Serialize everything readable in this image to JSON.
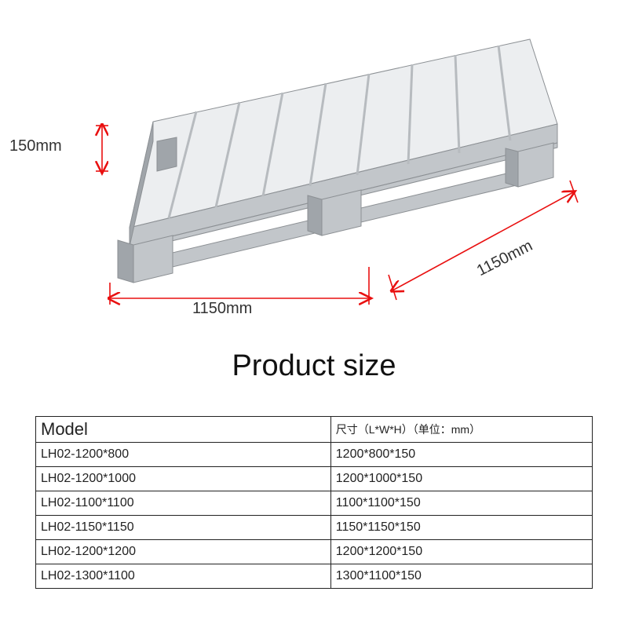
{
  "title": "Product size",
  "dimensions": {
    "height_label": "150mm",
    "width_label": "1150mm",
    "depth_label": "1150mm"
  },
  "diagram": {
    "arrow_color": "#e91010",
    "arrow_stroke_width": 1.6,
    "pallet": {
      "fill_light": "#eceef0",
      "fill_mid": "#c2c6ca",
      "fill_dark": "#a0a5aa",
      "edge": "#8c9094"
    },
    "label_color": "#333333",
    "label_fontsize": 20
  },
  "table": {
    "header_model": "Model",
    "header_size": "尺寸（L*W*H）（单位：mm）",
    "columns_width_pct": [
      53,
      47
    ],
    "border_color": "#222222",
    "rows": [
      {
        "model": "LH02-1200*800",
        "size": "1200*800*150"
      },
      {
        "model": "LH02-1200*1000",
        "size": "1200*1000*150"
      },
      {
        "model": "LH02-1100*1100",
        "size": "1100*1100*150"
      },
      {
        "model": "LH02-1150*1150",
        "size": "1150*1150*150"
      },
      {
        "model": "LH02-1200*1200",
        "size": "1200*1200*150"
      },
      {
        "model": "LH02-1300*1100",
        "size": "1300*1100*150"
      }
    ]
  }
}
